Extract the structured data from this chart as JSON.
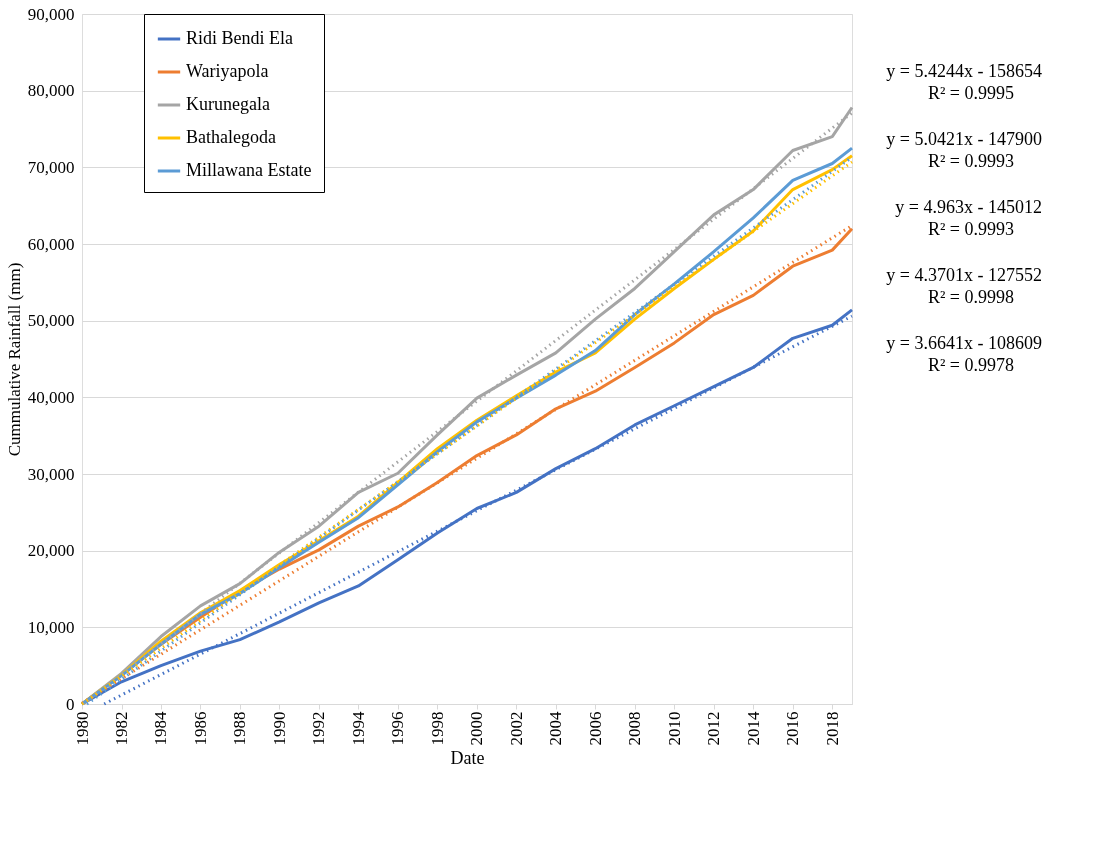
{
  "chart_data": {
    "type": "line",
    "xlabel": "Date",
    "ylabel": "Cummulative Rainfall (mm)",
    "xlim": [
      "1980-01-01",
      "2019-01-01"
    ],
    "ylim": [
      0,
      90000
    ],
    "xticks": [
      {
        "value": "1980",
        "label": "1980"
      },
      {
        "value": "1982",
        "label": "1982"
      },
      {
        "value": "1984",
        "label": "1984"
      },
      {
        "value": "1986",
        "label": "1986"
      },
      {
        "value": "1988",
        "label": "1988"
      },
      {
        "value": "1990",
        "label": "1990"
      },
      {
        "value": "1992",
        "label": "1992"
      },
      {
        "value": "1994",
        "label": "1994"
      },
      {
        "value": "1996",
        "label": "1996"
      },
      {
        "value": "1998",
        "label": "1998"
      },
      {
        "value": "2000",
        "label": "2000"
      },
      {
        "value": "2002",
        "label": "2002"
      },
      {
        "value": "2004",
        "label": "2004"
      },
      {
        "value": "2006",
        "label": "2006"
      },
      {
        "value": "2008",
        "label": "2008"
      },
      {
        "value": "2010",
        "label": "2010"
      },
      {
        "value": "2012",
        "label": "2012"
      },
      {
        "value": "2014",
        "label": "2014"
      },
      {
        "value": "2016",
        "label": "2016"
      },
      {
        "value": "2018",
        "label": "2018"
      }
    ],
    "yticks": [
      {
        "value": 0,
        "label": "0"
      },
      {
        "value": 10000,
        "label": "10,000"
      },
      {
        "value": 20000,
        "label": "20,000"
      },
      {
        "value": 30000,
        "label": "30,000"
      },
      {
        "value": 40000,
        "label": "40,000"
      },
      {
        "value": 50000,
        "label": "50,000"
      },
      {
        "value": 60000,
        "label": "60,000"
      },
      {
        "value": 70000,
        "label": "70,000"
      },
      {
        "value": 80000,
        "label": "80,000"
      },
      {
        "value": 90000,
        "label": "90,000"
      }
    ],
    "grid": "y",
    "legend": "top left",
    "marker": "none",
    "x": [
      "1980-01-01",
      "1982-01-01",
      "1984-01-01",
      "1986-01-01",
      "1988-01-01",
      "1990-01-01",
      "1992-01-01",
      "1994-01-01",
      "1996-01-01",
      "1998-01-01",
      "2000-01-01",
      "2002-01-01",
      "2004-01-01",
      "2006-01-01",
      "2008-01-01",
      "2010-01-01",
      "2012-01-01",
      "2014-01-01",
      "2016-01-01",
      "2018-01-01",
      "2019-01-01"
    ],
    "series": [
      {
        "name": "Ridi Bendi Ela",
        "color": "#4472c4",
        "line_style": "solid",
        "values": [
          0,
          2900,
          5000,
          6900,
          8400,
          10700,
          13200,
          15400,
          18800,
          22300,
          25500,
          27600,
          30700,
          33300,
          36400,
          38900,
          41400,
          43900,
          47700,
          49400,
          51400
        ]
      },
      {
        "name": "Wariyapola",
        "color": "#ed7d31",
        "line_style": "solid",
        "values": [
          0,
          3800,
          7800,
          11300,
          14700,
          17600,
          20100,
          23200,
          25700,
          28900,
          32400,
          35100,
          38500,
          40800,
          43900,
          47100,
          50800,
          53300,
          57100,
          59200,
          62000
        ]
      },
      {
        "name": "Kurunegala",
        "color": "#a5a5a5",
        "line_style": "solid",
        "values": [
          0,
          4000,
          8800,
          12800,
          15700,
          19800,
          23200,
          27600,
          30100,
          35100,
          39900,
          42900,
          45800,
          50200,
          54200,
          59000,
          63800,
          67100,
          72200,
          74000,
          77800
        ]
      },
      {
        "name": "Bathalegoda",
        "color": "#ffc000",
        "line_style": "solid",
        "values": [
          0,
          3800,
          8200,
          11900,
          14800,
          18200,
          21300,
          24500,
          28900,
          33300,
          37000,
          40200,
          43300,
          45800,
          50200,
          54200,
          58000,
          61700,
          67100,
          69700,
          71500
        ]
      },
      {
        "name": "Millawana Estate",
        "color": "#5b9bd5",
        "line_style": "solid",
        "values": [
          0,
          3700,
          7800,
          11700,
          14400,
          17800,
          21100,
          24300,
          28600,
          32900,
          36800,
          39900,
          42900,
          46100,
          50800,
          54800,
          59000,
          63400,
          68300,
          70500,
          72500
        ]
      },
      {
        "color": "#4472c4",
        "line_style": "dotted",
        "x": [
          "1981-02-15",
          "2019-01-01"
        ],
        "values": [
          0,
          50600
        ]
      },
      {
        "color": "#ed7d31",
        "line_style": "dotted",
        "x": [
          "1980-01-01",
          "2019-01-01"
        ],
        "values": [
          100,
          62400
        ]
      },
      {
        "color": "#a5a5a5",
        "line_style": "dotted",
        "x": [
          "1980-01-15",
          "2019-01-01"
        ],
        "values": [
          0,
          77100
        ]
      },
      {
        "color": "#ffc000",
        "line_style": "dotted",
        "x": [
          "1980-01-01",
          "2019-01-01"
        ],
        "values": [
          0,
          70700
        ]
      },
      {
        "color": "#5b9bd5",
        "line_style": "dotted",
        "x": [
          "1980-04-01",
          "2019-01-01"
        ],
        "values": [
          0,
          71300
        ]
      }
    ],
    "annotations": [
      "y = 5.4244x - 158654",
      "R² = 0.9995",
      "y = 5.0421x - 147900",
      "R² = 0.9993",
      "y = 4.963x - 145012",
      "R² = 0.9993",
      "y = 4.3701x - 127552",
      "R² = 0.9998",
      "y = 3.6641x - 108609",
      "R² = 0.9978"
    ]
  }
}
